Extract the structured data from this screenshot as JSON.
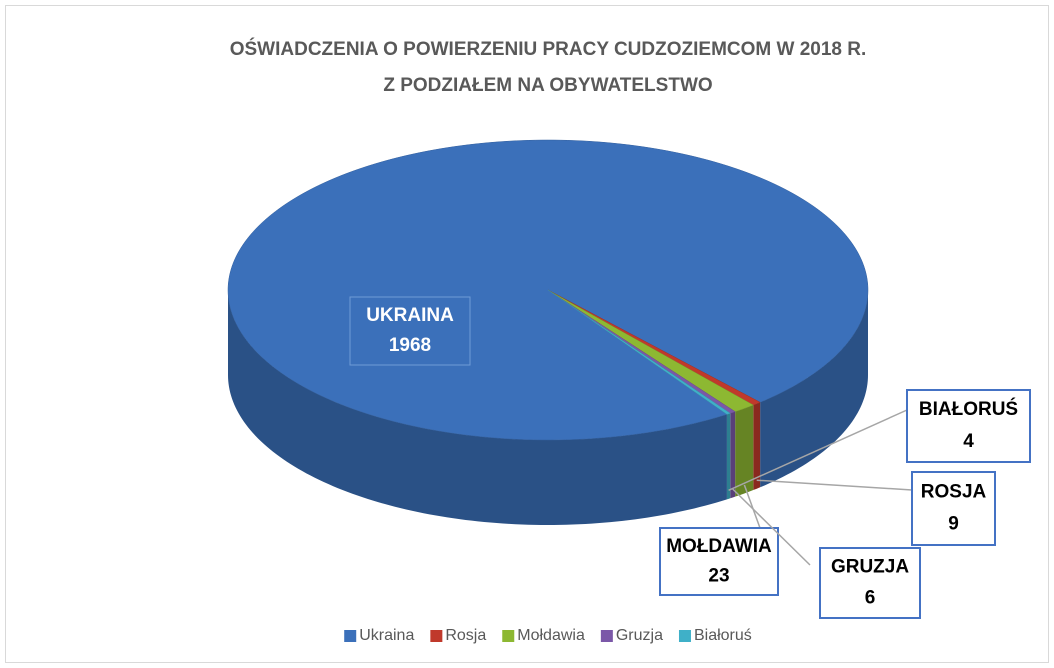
{
  "chart_data": {
    "type": "pie3d",
    "title": [
      "OŚWIADCZENIA O POWIERZENIU PRACY CUDZOZIEMCOM W 2018 R.",
      "Z PODZIAŁEM NA OBYWATELSTWO"
    ],
    "categories": [
      "Ukraina",
      "Rosja",
      "Mołdawia",
      "Gruzja",
      "Białoruś"
    ],
    "values": [
      1968,
      9,
      23,
      6,
      4
    ],
    "colors": [
      "#3b70ba",
      "#c0392b",
      "#8db832",
      "#7b58a8",
      "#3fb0c8"
    ],
    "legend": "bottom"
  }
}
